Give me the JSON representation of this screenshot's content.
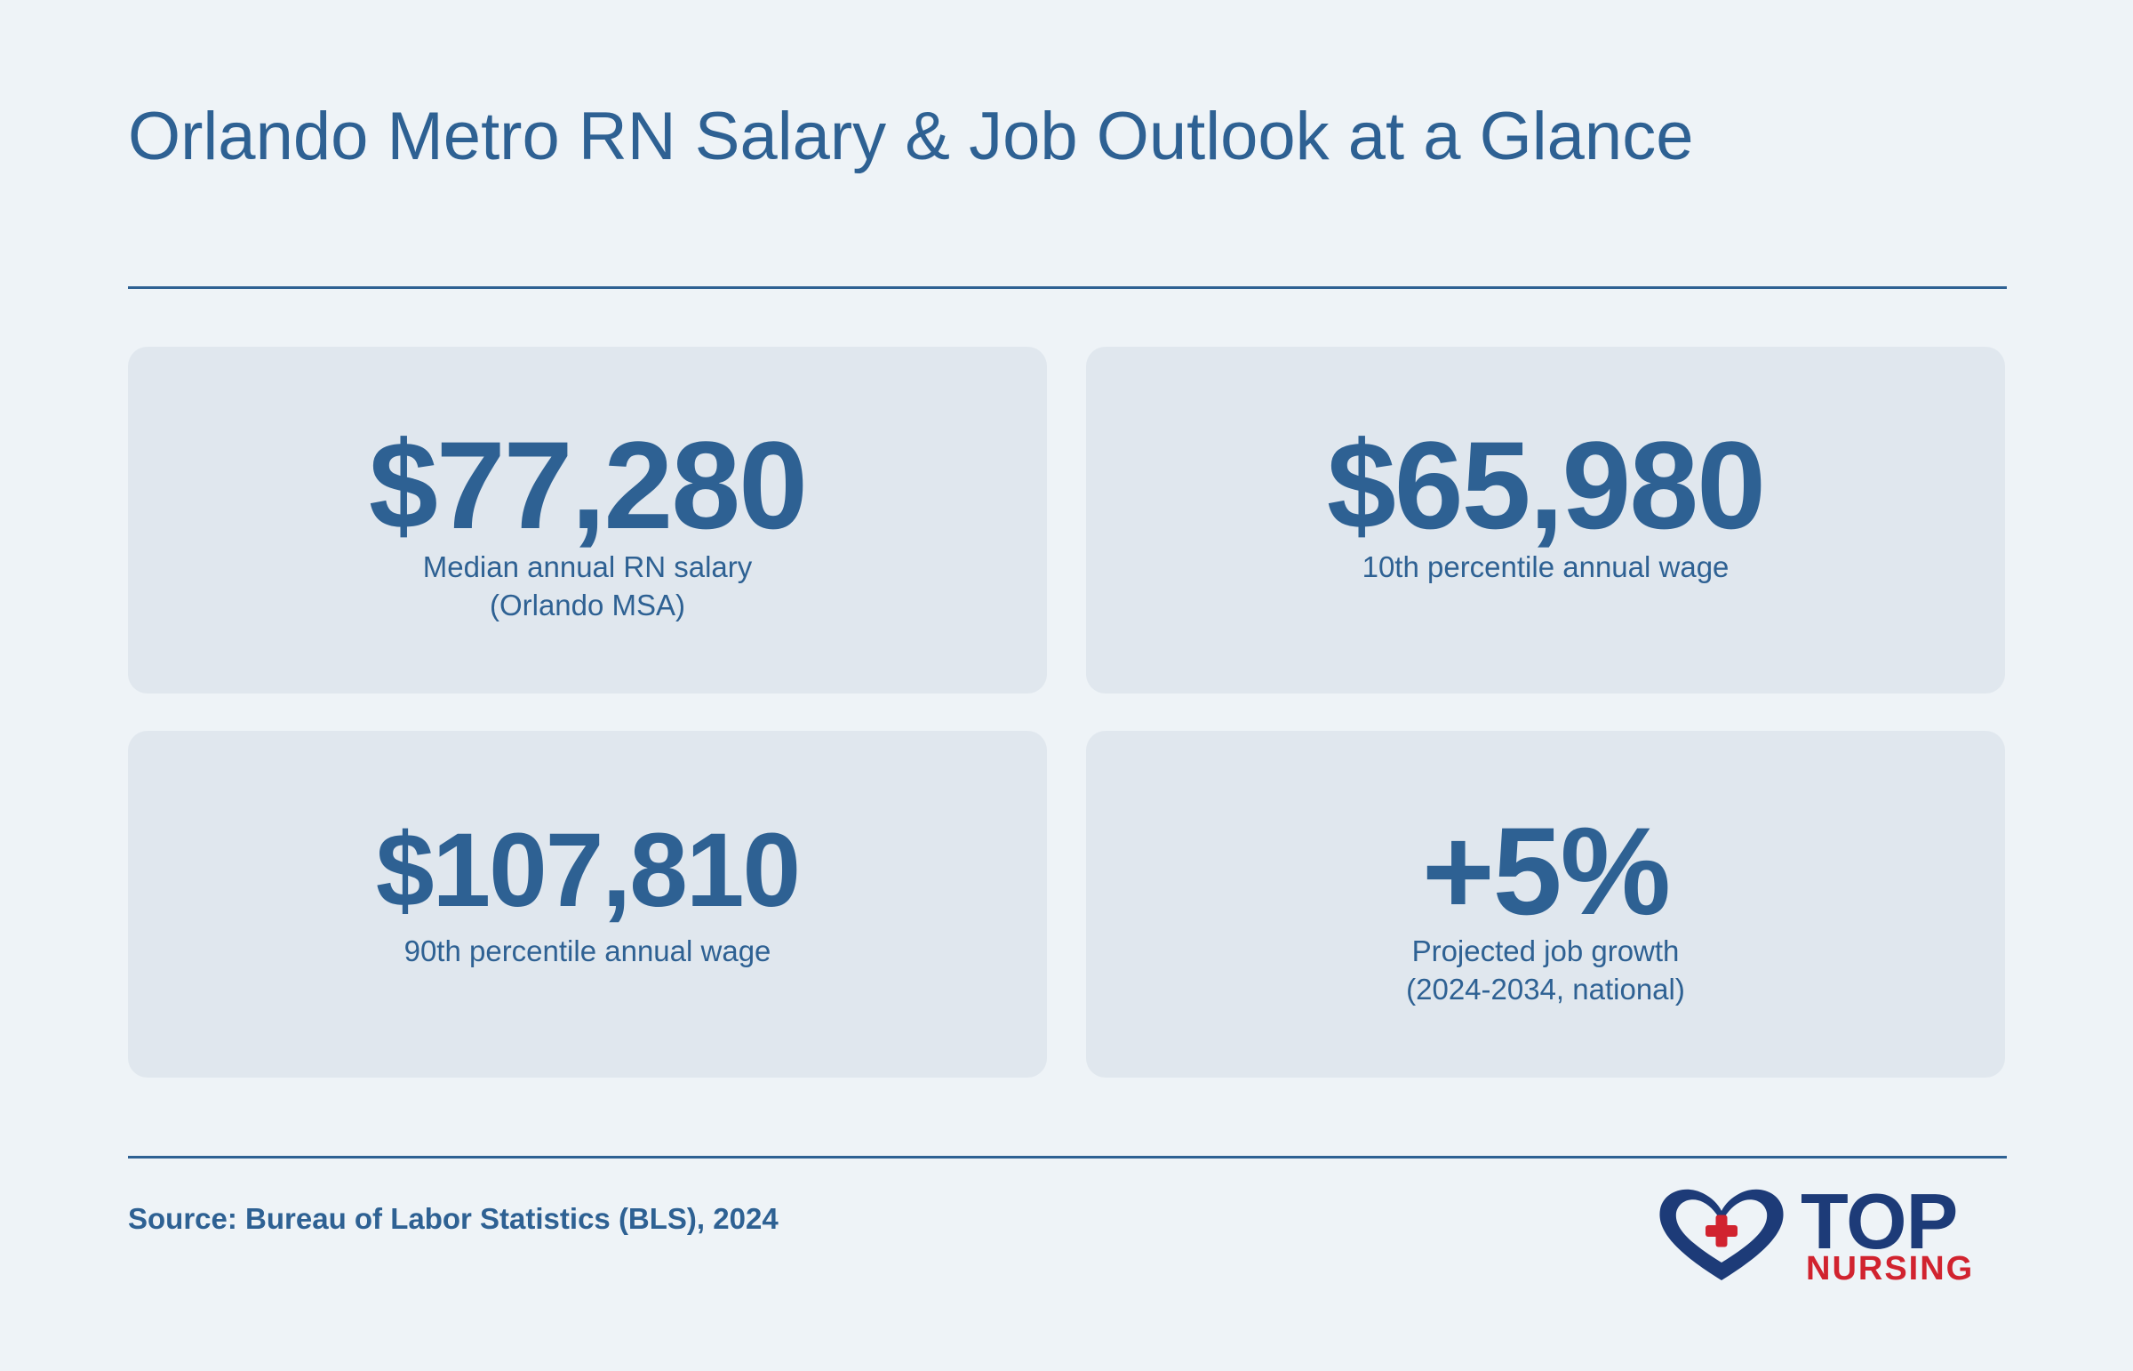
{
  "header": {
    "title": "Orlando Metro RN Salary & Job Outlook at a Glance"
  },
  "stats": [
    {
      "value": "$77,280",
      "label_lines": [
        "Median annual RN salary",
        "(Orlando MSA)"
      ]
    },
    {
      "value": "$65,980",
      "label_lines": [
        "10th percentile annual wage"
      ]
    },
    {
      "value": "$107,810",
      "label_lines": [
        "90th percentile annual wage"
      ]
    },
    {
      "value": "+5%",
      "label_lines": [
        "Projected job growth",
        "(2024-2034, national)"
      ]
    }
  ],
  "footer": {
    "source": "Source: Bureau of Labor Statistics (BLS), 2024"
  },
  "logo": {
    "icon": "heart-cross-icon",
    "text_top": "TOP",
    "text_bottom": "NURSING"
  },
  "colors": {
    "background": "#eef3f7",
    "card": "#e0e7ee",
    "primary": "#2e6193",
    "logo_navy": "#1d3b78",
    "logo_red": "#d1232f"
  }
}
